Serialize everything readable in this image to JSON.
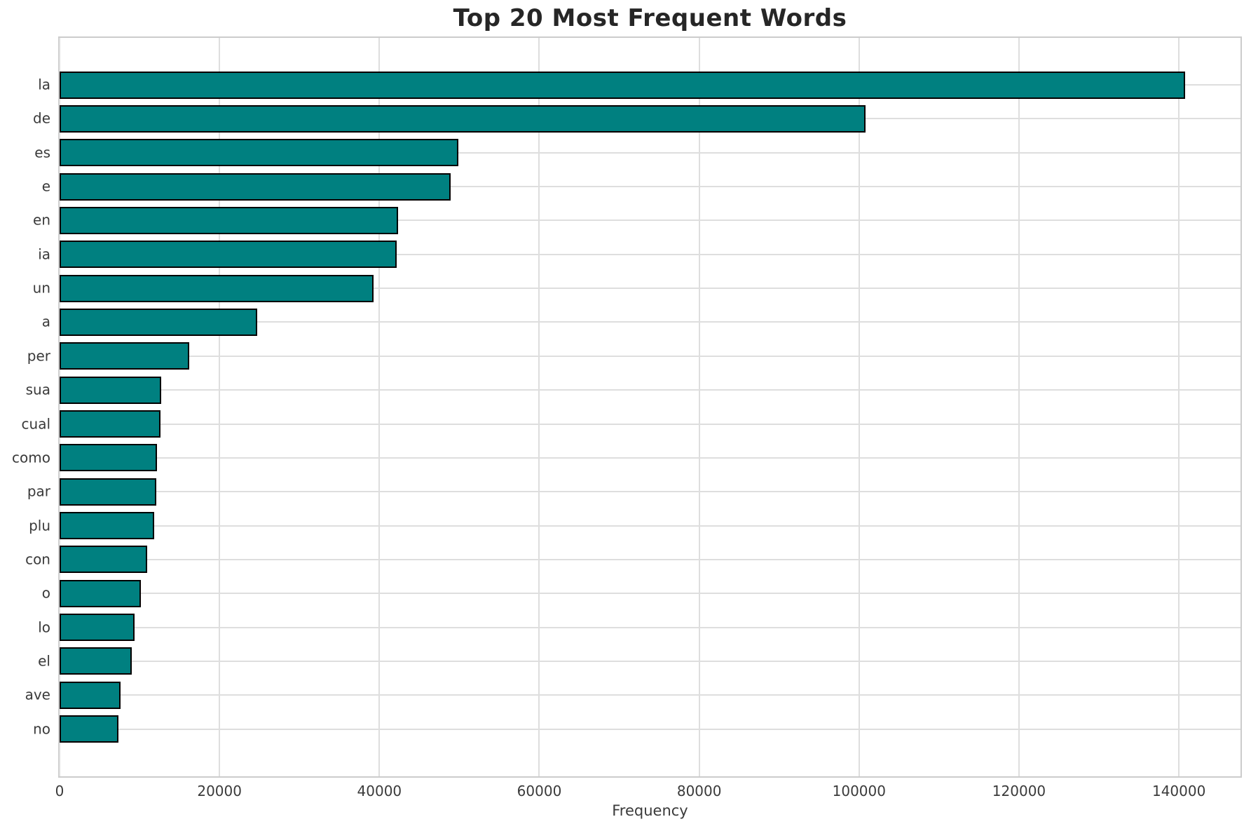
{
  "chart_data": {
    "type": "bar",
    "orientation": "horizontal",
    "title": "Top 20 Most Frequent Words",
    "xlabel": "Frequency",
    "ylabel": "",
    "categories": [
      "la",
      "de",
      "es",
      "e",
      "en",
      "ia",
      "un",
      "a",
      "per",
      "sua",
      "cual",
      "como",
      "par",
      "plu",
      "con",
      "o",
      "lo",
      "el",
      "ave",
      "no"
    ],
    "values": [
      140800,
      100800,
      49900,
      48900,
      42300,
      42200,
      39300,
      24700,
      16200,
      12700,
      12600,
      12200,
      12100,
      11800,
      11000,
      10200,
      9400,
      9000,
      7600,
      7400
    ],
    "xlim": [
      0,
      147700
    ],
    "xticks": [
      0,
      20000,
      40000,
      60000,
      80000,
      100000,
      120000,
      140000
    ],
    "xtick_labels": [
      "0",
      "20000",
      "40000",
      "60000",
      "80000",
      "100000",
      "120000",
      "140000"
    ],
    "grid": true,
    "legend": "none",
    "bar_color": "#008080",
    "bar_edge_color": "#000000",
    "grid_color": "#dedede",
    "spine_color": "#cccccc",
    "background": "#ffffff"
  }
}
